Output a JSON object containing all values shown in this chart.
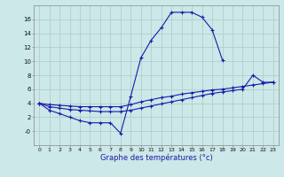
{
  "xlabel": "Graphe des températures (°c)",
  "line_color": "#1a1aaa",
  "bg_color": "#cce8e8",
  "grid_color": "#b0c8c8",
  "ylim": [
    -2,
    18
  ],
  "xlim": [
    -0.5,
    23.5
  ],
  "yticks": [
    0,
    2,
    4,
    6,
    8,
    10,
    12,
    14,
    16
  ],
  "ytick_labels": [
    "-0",
    "2",
    "4",
    "6",
    "8",
    "10",
    "12",
    "14",
    "16"
  ],
  "curve1_x": [
    0,
    1,
    2,
    3,
    4,
    5,
    6,
    7,
    8,
    9,
    10,
    11,
    12,
    13,
    14,
    15,
    16,
    17,
    18
  ],
  "curve1_y": [
    4.0,
    3.0,
    2.5,
    2.0,
    1.5,
    1.2,
    1.2,
    1.2,
    -0.3,
    5.0,
    10.5,
    13.0,
    14.8,
    17.0,
    17.0,
    17.0,
    16.3,
    14.5,
    10.2
  ],
  "curve2_x": [
    0,
    1,
    2,
    3,
    4,
    5,
    6,
    7,
    8,
    9,
    10,
    11,
    12,
    13,
    14,
    15,
    16,
    17,
    18,
    19,
    20,
    21,
    22,
    23
  ],
  "curve2_y": [
    4.0,
    3.8,
    3.7,
    3.6,
    3.5,
    3.5,
    3.5,
    3.5,
    3.5,
    3.8,
    4.2,
    4.5,
    4.8,
    5.0,
    5.3,
    5.5,
    5.7,
    5.9,
    6.0,
    6.2,
    6.4,
    6.6,
    6.8,
    7.0
  ],
  "curve3_x": [
    0,
    1,
    2,
    3,
    4,
    5,
    6,
    7,
    8,
    9,
    10,
    11,
    12,
    13,
    14,
    15,
    16,
    17,
    18,
    19,
    20,
    21,
    22,
    23
  ],
  "curve3_y": [
    4.0,
    3.5,
    3.3,
    3.1,
    3.0,
    2.9,
    2.8,
    2.8,
    2.8,
    3.0,
    3.3,
    3.6,
    3.9,
    4.2,
    4.5,
    4.8,
    5.1,
    5.4,
    5.6,
    5.8,
    6.0,
    8.0,
    7.0,
    7.0
  ]
}
